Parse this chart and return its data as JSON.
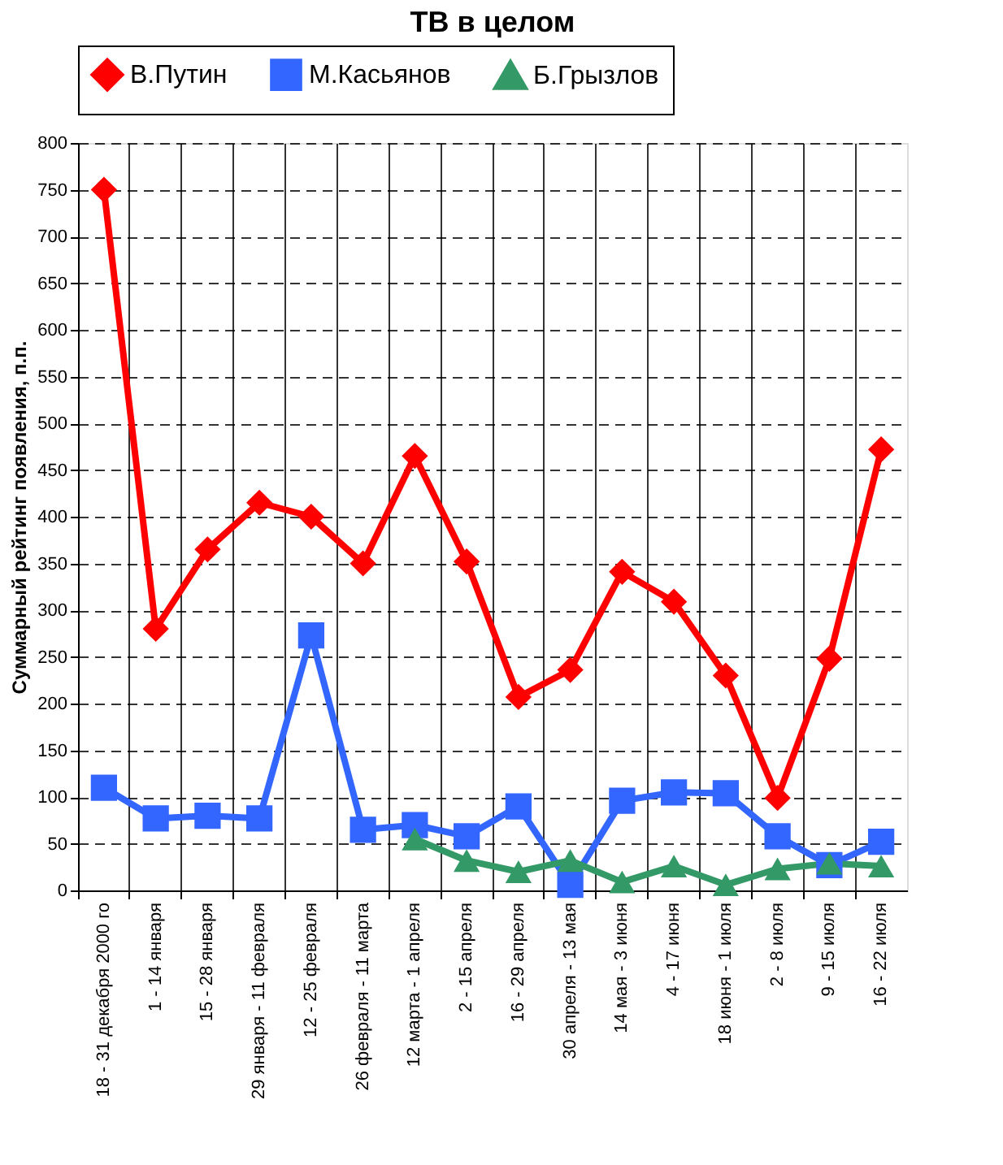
{
  "chart_data": {
    "type": "line",
    "title": "ТВ в целом",
    "ylabel": "Суммарный рейтинг появления, п.п.",
    "categories": [
      "18 - 31 декабря 2000 го",
      "1 - 14 января",
      "15 - 28 января",
      "29 января - 11 февраля",
      "12 - 25 февраля",
      "26 февраля - 11 марта",
      "12 марта - 1 апреля",
      "2 - 15 апреля",
      "16 - 29 апреля",
      "30 апреля - 13 мая",
      "14 мая - 3 июня",
      "4 - 17 июня",
      "18 июня - 1 июля",
      "2 - 8 июля",
      "9 - 15 июля",
      "16 - 22 июля"
    ],
    "series": [
      {
        "name": "В.Путин",
        "color": "#ff0000",
        "marker": "diamond",
        "values": [
          750,
          280,
          365,
          415,
          400,
          350,
          465,
          352,
          207,
          236,
          341,
          309,
          230,
          99,
          248,
          472
        ]
      },
      {
        "name": "М.Касьянов",
        "color": "#3366ff",
        "marker": "square",
        "values": [
          110,
          77,
          80,
          77,
          273,
          65,
          70,
          58,
          90,
          6,
          96,
          105,
          104,
          58,
          27,
          52
        ]
      },
      {
        "name": "Б.Грызлов",
        "color": "#339966",
        "marker": "triangle",
        "values": [
          null,
          null,
          null,
          null,
          null,
          null,
          55,
          32,
          20,
          32,
          9,
          26,
          6,
          23,
          29,
          26
        ]
      }
    ],
    "ylim": [
      0,
      800
    ],
    "yticks": [
      0,
      50,
      100,
      150,
      200,
      250,
      300,
      350,
      400,
      450,
      500,
      550,
      600,
      650,
      700,
      750,
      800
    ],
    "grid": true,
    "legend": "top",
    "line_style": "solid"
  }
}
